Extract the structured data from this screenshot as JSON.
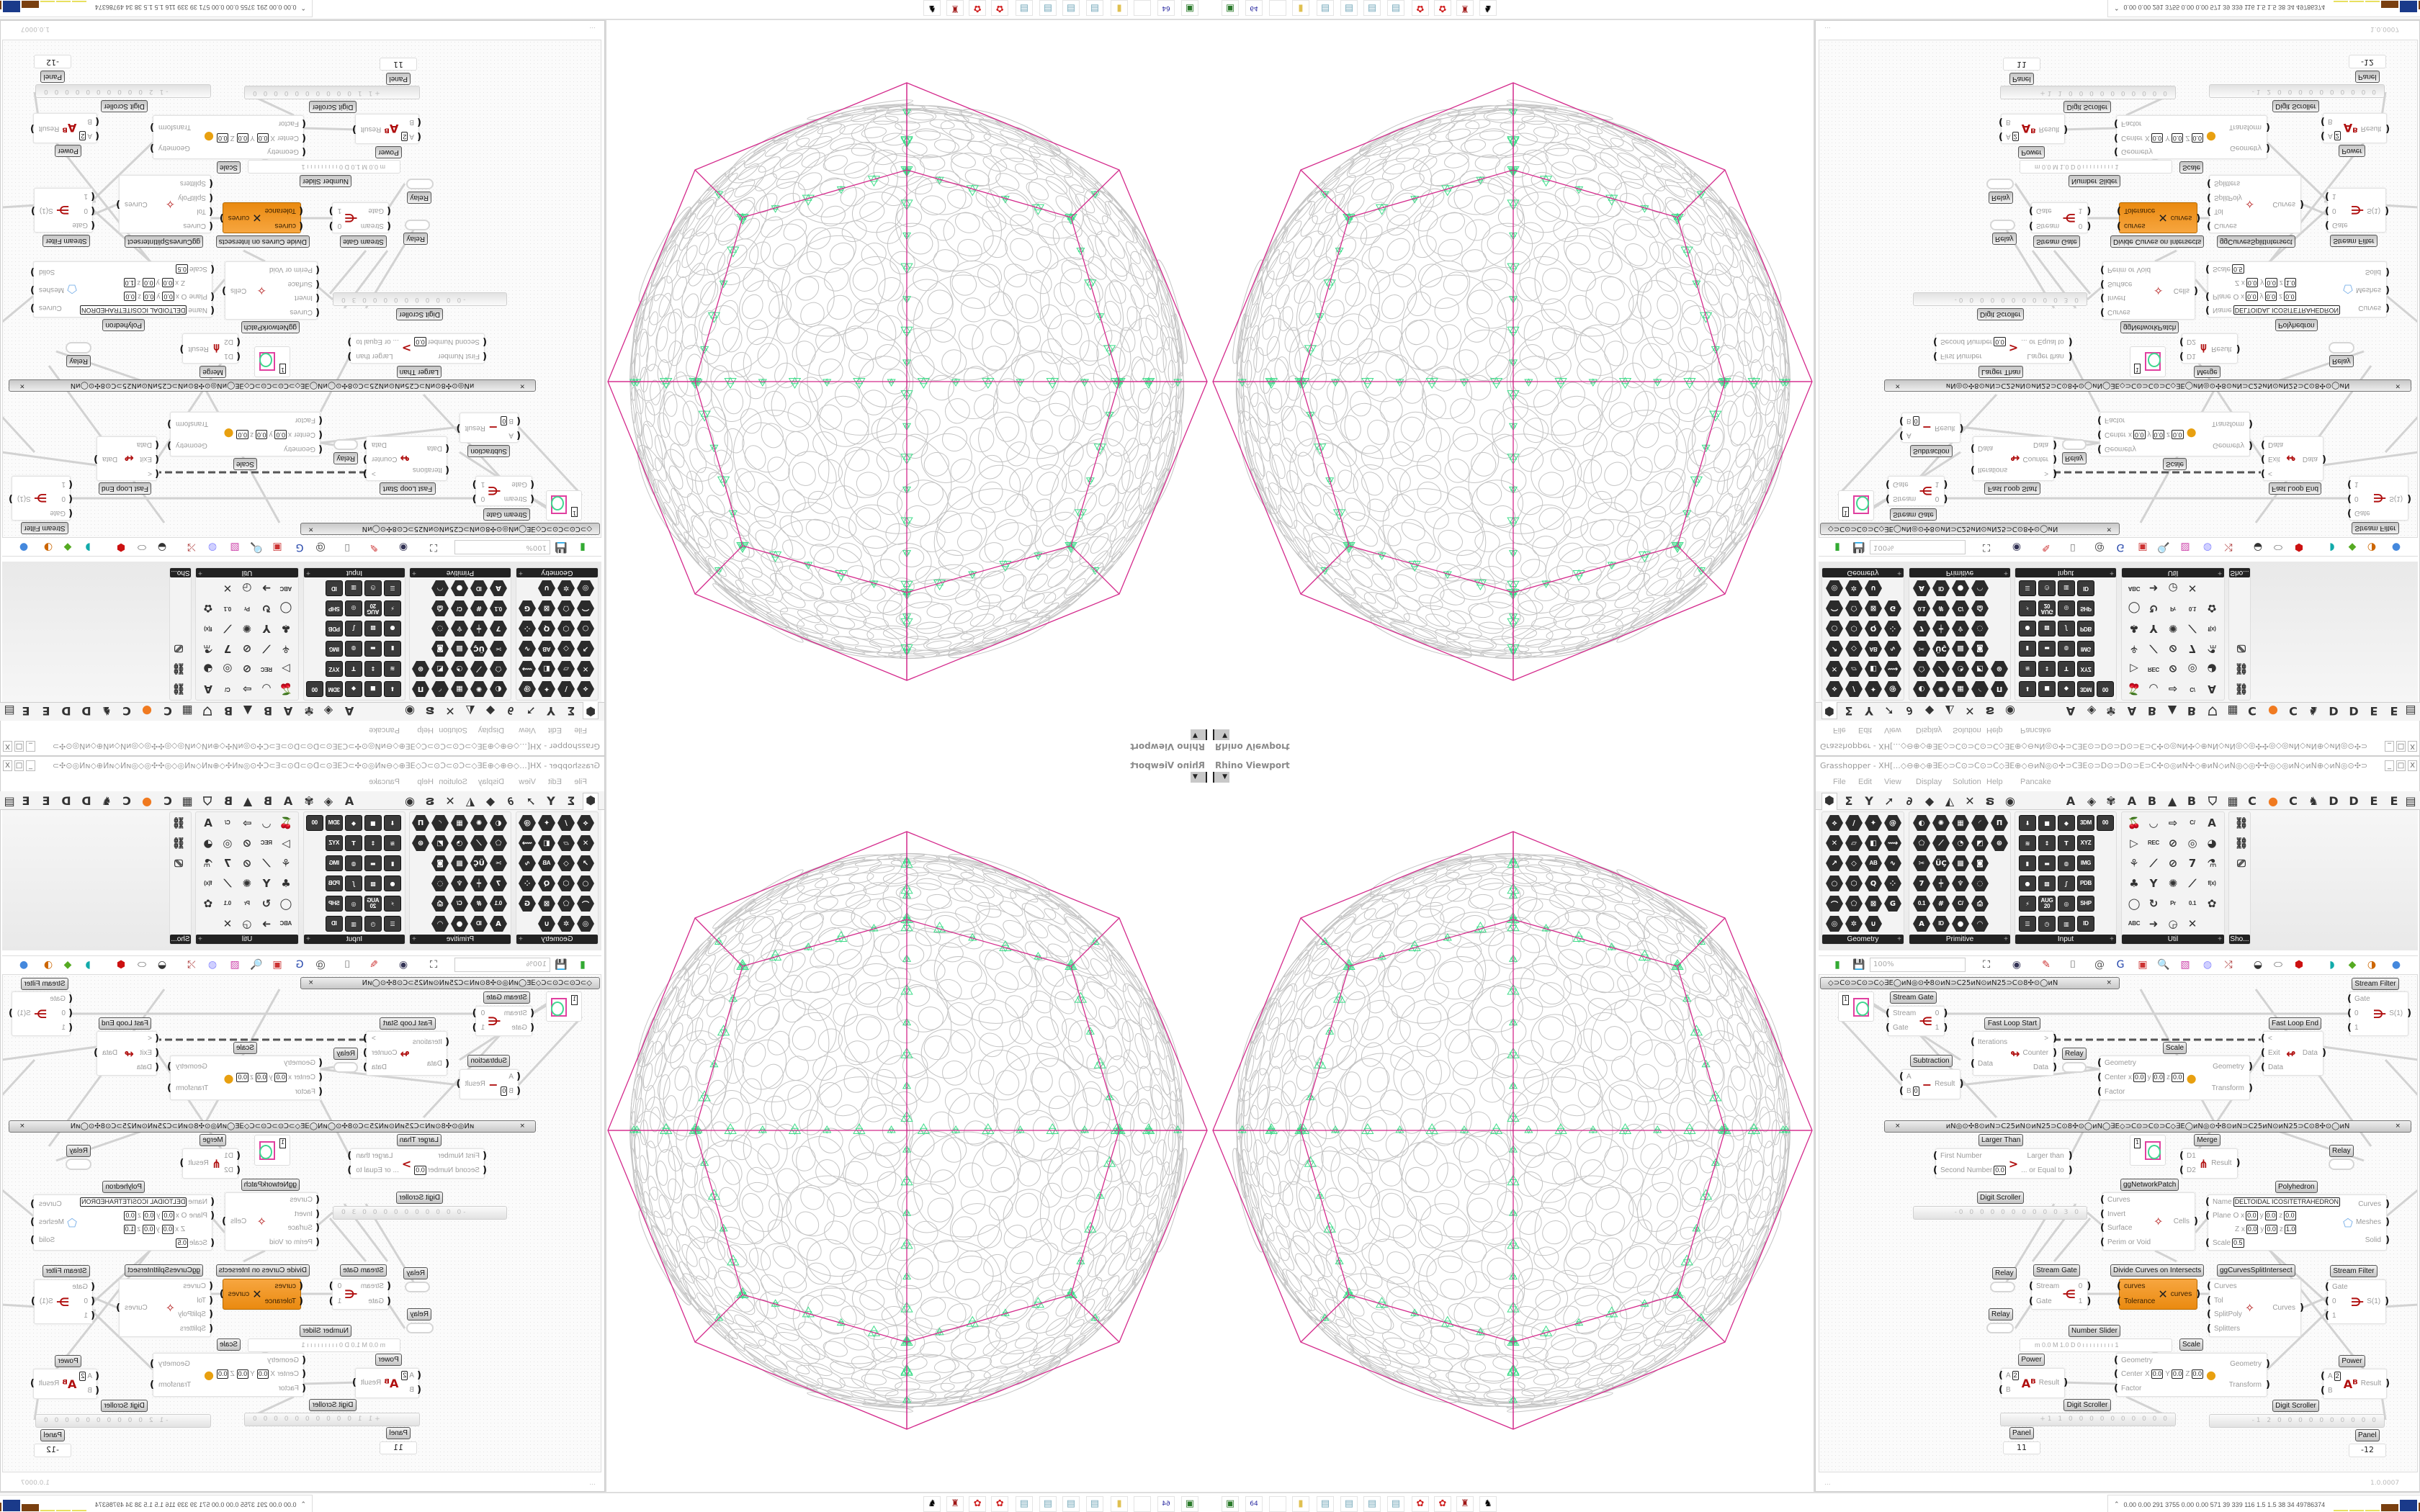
{
  "viewport": {
    "title": "Rhino Viewport",
    "dropdown_icon": "caret-down-icon",
    "colors": {
      "outer_polyhedron": "#d42a8c",
      "circles": "#c4c4c4",
      "mesh": "#3fdc8a"
    }
  },
  "grasshopper": {
    "title": "Grasshopper - XH[...◇⊖⊕◇⊕∃E◇⊃C⊙⊃C⊙⊃C◇∃E⊕◇⊖ᴎN◎⊙✣⊃C∃E⊙⊃D⊙⊃D⊙⊃E⊃C✣⊙◎ᴎN✣◇⊕ᴎN◇ᴎN◎◇◎✣✣◎◇◎ᴎN◇ᴎN⊕◇ᴎN◎⊙✣⊃C∃E⊙⊃D⊙⊃D...",
    "window_buttons": [
      "_",
      "□",
      "X"
    ],
    "menu": [
      "File",
      "Edit",
      "View",
      "Display",
      "Solution",
      "Help",
      "Pancake"
    ],
    "tabs": [
      {
        "icon": "params-hex-icon",
        "g": "⬢",
        "selected": true
      },
      {
        "icon": "sigma-icon",
        "g": "Σ"
      },
      {
        "icon": "vector-icon",
        "g": "Y"
      },
      {
        "icon": "arrow-icon",
        "g": "➚"
      },
      {
        "icon": "curve-icon",
        "g": "∂"
      },
      {
        "icon": "surface-icon",
        "g": "◆"
      },
      {
        "icon": "mesh-icon",
        "g": "◭"
      },
      {
        "icon": "intersect-icon",
        "g": "✕"
      },
      {
        "icon": "transform-icon",
        "g": "ຣ"
      },
      {
        "icon": "display-eye-icon",
        "g": "◉"
      },
      {
        "label": "A"
      },
      {
        "icon": "gem-icon",
        "g": "◈"
      },
      {
        "icon": "puzzle-icon",
        "g": "✾"
      },
      {
        "label": "A"
      },
      {
        "label": "B"
      },
      {
        "icon": "mountain-icon",
        "g": "▲"
      },
      {
        "label": "B"
      },
      {
        "icon": "shield-icon",
        "g": "⛉"
      },
      {
        "icon": "grid-icon",
        "g": "▦"
      },
      {
        "label": "C"
      },
      {
        "icon": "orange-circle-icon",
        "g": "●",
        "color": "#f07a20"
      },
      {
        "label": "C"
      },
      {
        "icon": "rooster-icon",
        "g": "♞"
      },
      {
        "label": "D"
      },
      {
        "label": "D"
      },
      {
        "label": "E"
      },
      {
        "label": "E"
      },
      {
        "icon": "more-tabs-icon",
        "g": "▤"
      }
    ],
    "palette": [
      {
        "label": "Geometry",
        "style": "hex",
        "icons": [
          "⟡",
          "/",
          "✦",
          "@",
          "✕",
          "▱",
          "◧",
          "⟿",
          "↗",
          "◇",
          "AB",
          "∿",
          "○",
          "⬡",
          "Q",
          "⁘",
          "⌒",
          "⬠",
          "⊠",
          "G",
          "◎",
          "✲",
          "∪"
        ]
      },
      {
        "label": "Primitive",
        "style": "hex",
        "icons": [
          "◐",
          "✺",
          "▦",
          "◜",
          "Π",
          "⬠",
          "⟋",
          "◔",
          "◩",
          "⊛",
          "✂",
          "ÜÇ",
          "▩",
          "◙",
          "7",
          "┿",
          "♆",
          "◌",
          "0.1",
          "#",
          "C/",
          "⎙",
          "A",
          "ID",
          "●",
          "◠"
        ]
      },
      {
        "label": "Input",
        "style": "sq",
        "icons": [
          "⬇",
          "■",
          "◆",
          "3DM",
          "00",
          "≋",
          "↕",
          "T",
          "XYZ",
          "▮",
          "▬",
          "◍",
          "IMG",
          "●",
          "▩",
          "∫",
          "PDB",
          "⚡",
          "AUG 20",
          "◎",
          "SHP",
          "☰",
          "◷",
          "▥",
          "ID"
        ]
      },
      {
        "label": "Util",
        "style": "lt",
        "icons": [
          "🍒",
          "◡",
          "⇨",
          "C/",
          "A",
          "▷",
          "REC",
          "⊘",
          "◎",
          "◕",
          "⚘",
          "⟋",
          "⊘",
          "7",
          "⚗",
          "♣",
          "Y",
          "✺",
          "⟋",
          "f(x)",
          "◯",
          "↻",
          "Pr",
          "0.1",
          "✿",
          "ABC",
          "➜",
          "◶",
          "✕"
        ]
      },
      {
        "label": "Sho...",
        "style": "lt",
        "icons": [
          "⛓",
          "⛓",
          "⎚"
        ]
      }
    ],
    "toolbar": [
      {
        "icon": "new-document-icon",
        "g": "▮"
      },
      {
        "icon": "save-icon",
        "g": "💾"
      },
      {
        "icon": "zoom-extents-icon",
        "g": "⛶"
      },
      {
        "icon": "preview-eye-icon",
        "g": "◉"
      },
      {
        "icon": "sketch-pen-icon",
        "g": "✎"
      },
      {
        "icon": "cluster-icon",
        "g": "⌷"
      },
      {
        "icon": "at-icon",
        "g": "@"
      },
      {
        "icon": "gha-icon",
        "g": "G"
      },
      {
        "icon": "canvas-image-icon",
        "g": "▣"
      },
      {
        "icon": "search-icon",
        "g": "🔍"
      },
      {
        "icon": "package-icon",
        "g": "▧"
      },
      {
        "icon": "bulb-icon",
        "g": "◍"
      },
      {
        "icon": "wires-icon",
        "g": "⤮"
      },
      {
        "icon": "preview-shaded-icon",
        "g": "◒"
      },
      {
        "icon": "preview-wire-icon",
        "g": "⬭"
      },
      {
        "icon": "preview-red-icon",
        "g": "⬢"
      },
      {
        "icon": "teal-shape-icon",
        "g": "◗"
      },
      {
        "icon": "green-shape-icon",
        "g": "◆"
      },
      {
        "icon": "sphere-icon",
        "g": "◑"
      },
      {
        "icon": "blue-sphere-icon",
        "g": "●"
      }
    ],
    "zoom_level": "100%",
    "canvas": {
      "group_bar_text": "◇⊃C⊙⊃C⊙⊃C◇∃E◯ᴎN◎⊙✣8⊙ᴎN⊃C25ᴎN⊙ᴎN25⊃C⊙8✣⊙◯ᴎN",
      "group_bar_text_2": "ᴎN◎⊙✣8⊙ᴎN⊃C25ᴎN⊙ᴎN25⊃C⊙8✣⊙◯ᴎN◯∃E◇⊃C⊙⊃C⊙⊃C◇∃E◯ᴎN◎⊙✣8⊙ᴎN⊃C25ᴎN⊙ᴎN25⊃C⊙8✣⊙◯ᴎN",
      "components": [
        {
          "id": "swatch1",
          "type": "swatch",
          "value": "1"
        },
        {
          "id": "sgate1",
          "label": "Stream Gate",
          "inputs": [
            {
              "l": "Stream"
            },
            {
              "l": "Gate"
            }
          ],
          "outputs": [
            "0",
            "1"
          ],
          "glyph": "⋲"
        },
        {
          "id": "floopstart",
          "label": "Fast Loop Start",
          "inputs": [
            {
              "l": "Iterations"
            },
            {
              "l": "Data"
            }
          ],
          "outputs": [
            ">",
            "Counter",
            "Data"
          ],
          "glyph": "↬"
        },
        {
          "id": "relay1",
          "type": "relay",
          "label": "Relay"
        },
        {
          "id": "sub",
          "label": "Subtraction",
          "inputs": [
            {
              "l": "A"
            },
            {
              "l": "B",
              "v": [
                [
                  "",
                  "0"
                ]
              ]
            }
          ],
          "outputs": [
            "Result"
          ],
          "glyph": "−"
        },
        {
          "id": "scale1",
          "label": "Scale",
          "inputs": [
            {
              "l": "Geometry"
            },
            {
              "l": "Center",
              "v": [
                [
                  "x",
                  "0.0"
                ],
                [
                  "y",
                  "0.0"
                ],
                [
                  "z",
                  "0.0"
                ]
              ]
            },
            {
              "l": "Factor"
            }
          ],
          "outputs": [
            "Geometry",
            "Transform"
          ],
          "glyph": "●"
        },
        {
          "id": "floopend",
          "label": "Fast Loop End",
          "inputs": [
            {
              "l": "<"
            },
            {
              "l": "Exit"
            },
            {
              "l": "Data"
            }
          ],
          "outputs": [
            "Data"
          ],
          "glyph": "↫"
        },
        {
          "id": "sfilter1",
          "label": "Stream Filter",
          "inputs": [
            {
              "l": "Gate"
            },
            {
              "l": "0"
            },
            {
              "l": "1"
            }
          ],
          "outputs": [
            "S(1)"
          ],
          "glyph": "⋺"
        },
        {
          "id": "larger",
          "label": "Larger Than",
          "inputs": [
            {
              "l": "First Number"
            },
            {
              "l": "Second Number",
              "v": [
                [
                  "",
                  "0.0"
                ]
              ]
            }
          ],
          "outputs": [
            "Larger than",
            "... or Equal to"
          ],
          "glyph": ">"
        },
        {
          "id": "swatch2",
          "type": "swatch",
          "value": "1"
        },
        {
          "id": "merge",
          "label": "Merge",
          "inputs": [
            {
              "l": "D1"
            },
            {
              "l": "D2"
            }
          ],
          "outputs": [
            "Result"
          ],
          "glyph": "⋔"
        },
        {
          "id": "relay2",
          "type": "relay",
          "label": "Relay"
        },
        {
          "id": "ggnet",
          "label": "ggNetworkPatch",
          "inputs": [
            {
              "l": "Curves"
            },
            {
              "l": "Invert"
            },
            {
              "l": "Surface"
            },
            {
              "l": "Perim or Void"
            }
          ],
          "outputs": [
            "Cells"
          ],
          "glyph": "✧"
        },
        {
          "id": "poly",
          "label": "Polyhedron",
          "inputs": [
            {
              "l": "Name",
              "v": [
                [
                  "",
                  "DELTOIDAL ICOSITETRAHEDRON"
                ]
              ]
            },
            {
              "l": "Plane",
              "v": [
                [
                  "O x",
                  "0.0"
                ],
                [
                  "y",
                  "0.0"
                ],
                [
                  "z",
                  "0.0"
                ]
              ]
            },
            {
              "l": "",
              "v": [
                [
                  "Z x",
                  "0.0"
                ],
                [
                  "y",
                  "0.0"
                ],
                [
                  "z",
                  "1.0"
                ]
              ]
            },
            {
              "l": "Scale",
              "v": [
                [
                  "",
                  "0.5"
                ]
              ]
            }
          ],
          "outputs": [
            "Curves",
            "Meshes",
            "Solid"
          ],
          "glyph": "⬠"
        },
        {
          "id": "dscroll1",
          "type": "scroller",
          "label": "Digit Scroller",
          "value": "-0 0 0 0 0 0 0 0 0 0 3 0"
        },
        {
          "id": "relayA",
          "type": "relay",
          "label": "Relay"
        },
        {
          "id": "sgate2",
          "label": "Stream Gate",
          "inputs": [
            {
              "l": "Stream"
            },
            {
              "l": "Gate"
            }
          ],
          "outputs": [
            "0",
            "1"
          ],
          "glyph": "⋲"
        },
        {
          "id": "divide",
          "label": "Divide Curves on Intersects",
          "orange": true,
          "inputs": [
            {
              "l": "curves"
            },
            {
              "l": "Tolerance"
            }
          ],
          "outputs": [
            "curves"
          ],
          "glyph": "✕"
        },
        {
          "id": "ggsplit",
          "label": "ggCurvesSplitIntersect",
          "inputs": [
            {
              "l": "Curves"
            },
            {
              "l": "Tol"
            },
            {
              "l": "SplitPoly"
            },
            {
              "l": "Splitters"
            }
          ],
          "outputs": [
            "Curves"
          ],
          "glyph": "✧"
        },
        {
          "id": "sfilter2",
          "label": "Stream Filter",
          "inputs": [
            {
              "l": "Gate"
            },
            {
              "l": "0"
            },
            {
              "l": "1"
            }
          ],
          "outputs": [
            "S(1)"
          ],
          "glyph": "⋺"
        },
        {
          "id": "relayB",
          "type": "relay",
          "label": "Relay"
        },
        {
          "id": "nslider",
          "type": "slider",
          "label": "Number Slider",
          "value": "m 0.0  M 1.0  D 0   ı ı ı ı ı ı ı ı ı  1"
        },
        {
          "id": "scale2",
          "label": "Scale",
          "inputs": [
            {
              "l": "Geometry"
            },
            {
              "l": "Center",
              "v": [
                [
                  "X",
                  "0.0"
                ],
                [
                  "Y",
                  "0.0"
                ],
                [
                  "Z",
                  "0.0"
                ]
              ]
            },
            {
              "l": "Factor"
            }
          ],
          "outputs": [
            "Geometry",
            "Transform"
          ],
          "glyph": "●"
        },
        {
          "id": "power1",
          "label": "Power",
          "inputs": [
            {
              "l": "A",
              "v": [
                [
                  "",
                  "2"
                ]
              ]
            },
            {
              "l": "B"
            }
          ],
          "outputs": [
            "Result"
          ],
          "glyph": "Aᴮ"
        },
        {
          "id": "power2",
          "label": "Power",
          "inputs": [
            {
              "l": "A",
              "v": [
                [
                  "",
                  "2"
                ]
              ]
            },
            {
              "l": "B"
            }
          ],
          "outputs": [
            "Result"
          ],
          "glyph": "Aᴮ"
        },
        {
          "id": "dscroll2",
          "type": "scroller",
          "label": "Digit Scroller",
          "value": "+1 1 0 0 0 0 0 0 0 0 0 0"
        },
        {
          "id": "dscroll3",
          "type": "scroller",
          "label": "Digit Scroller",
          "value": "-1 2 0 0 0 0 0 0 0 0 0 0"
        },
        {
          "id": "panel1",
          "type": "panel",
          "label": "Panel",
          "value": "11"
        },
        {
          "id": "panel2",
          "type": "panel",
          "label": "Panel",
          "value": "-12"
        }
      ]
    },
    "status_left": "...",
    "status_right": "1.0.0007"
  },
  "taskbar": {
    "apps": [
      {
        "icon": "terminal-icon",
        "g": "▣",
        "color": "#2a7a2a"
      },
      {
        "icon": "floppy-64-icon",
        "g": "64",
        "color": "#2a2aa0"
      },
      {
        "icon": "blank-icon",
        "g": "",
        "color": "#ccc"
      },
      {
        "icon": "folder-icon",
        "g": "▮",
        "color": "#e0c050"
      },
      {
        "icon": "notepad-icon",
        "g": "▤",
        "color": "#7ab"
      },
      {
        "icon": "notepad-icon",
        "g": "▤",
        "color": "#7ab"
      },
      {
        "icon": "notepad-icon",
        "g": "▤",
        "color": "#7ab"
      },
      {
        "icon": "notepad-icon",
        "g": "▤",
        "color": "#7ab"
      },
      {
        "icon": "red-app-icon",
        "g": "✿",
        "color": "#d02020"
      },
      {
        "icon": "red-app-icon",
        "g": "✿",
        "color": "#d02020"
      },
      {
        "icon": "red-bin-icon",
        "g": "♜",
        "color": "#a01818"
      },
      {
        "icon": "wolf-icon",
        "g": "♞",
        "color": "#000"
      }
    ],
    "perf_caret": "⌃",
    "perf_text": "0.00 0.00 291 3755 0.00 0.00 571  39  339  116  1.5  1.5  38  34  49786374",
    "perf_bar_colors": [
      "#e8e060",
      "#e8e060",
      "#e8e060",
      "#7a4010",
      "#1a3a8a",
      "#7a4010",
      "#40c040",
      "#c04040"
    ]
  }
}
